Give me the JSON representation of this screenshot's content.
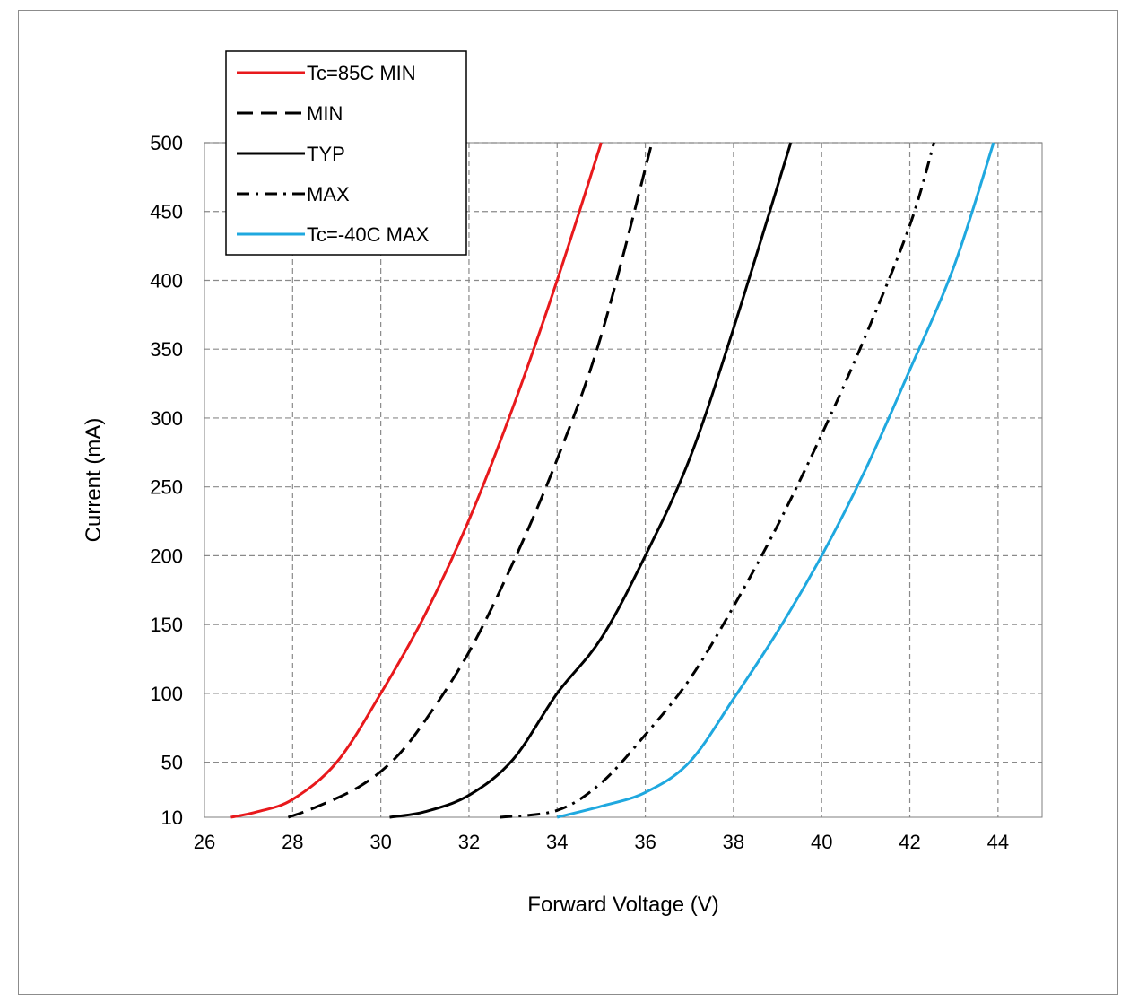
{
  "chart_data": {
    "type": "line",
    "title": "",
    "xlabel": "Forward Voltage (V)",
    "ylabel": "Current (mA)",
    "xlim": [
      26,
      45
    ],
    "ylim": [
      10,
      500
    ],
    "x_ticks": [
      26,
      28,
      30,
      32,
      34,
      36,
      38,
      40,
      42,
      44
    ],
    "y_ticks": [
      10,
      50,
      100,
      150,
      200,
      250,
      300,
      350,
      400,
      450,
      500
    ],
    "x_tick_labels": [
      "26",
      "28",
      "30",
      "32",
      "34",
      "36",
      "38",
      "40",
      "42",
      "44"
    ],
    "y_tick_labels": [
      "10",
      "50",
      "100",
      "150",
      "200",
      "250",
      "300",
      "350",
      "400",
      "450",
      "500"
    ],
    "grid": true,
    "grid_style": "dashed",
    "legend_position": "top-left",
    "series": [
      {
        "name": "Tc=85C MIN",
        "color": "#e8191c",
        "dash": "solid",
        "points": [
          [
            26.6,
            10
          ],
          [
            27.2,
            14
          ],
          [
            28.0,
            23
          ],
          [
            29.0,
            50
          ],
          [
            30.0,
            100
          ],
          [
            31.0,
            157
          ],
          [
            32.0,
            226
          ],
          [
            33.0,
            308
          ],
          [
            34.0,
            400
          ],
          [
            35.0,
            500
          ]
        ]
      },
      {
        "name": "MIN",
        "color": "#000000",
        "dash": "dash",
        "points": [
          [
            27.9,
            10
          ],
          [
            28.5,
            17
          ],
          [
            29.5,
            32
          ],
          [
            30.3,
            52
          ],
          [
            31.0,
            80
          ],
          [
            32.0,
            130
          ],
          [
            33.0,
            195
          ],
          [
            34.0,
            270
          ],
          [
            35.0,
            360
          ],
          [
            36.15,
            500
          ]
        ]
      },
      {
        "name": "TYP",
        "color": "#000000",
        "dash": "solid",
        "points": [
          [
            30.2,
            10
          ],
          [
            31.0,
            14
          ],
          [
            32.0,
            26
          ],
          [
            33.0,
            52
          ],
          [
            34.0,
            100
          ],
          [
            35.0,
            140
          ],
          [
            36.0,
            200
          ],
          [
            37.0,
            270
          ],
          [
            38.0,
            365
          ],
          [
            39.3,
            500
          ]
        ]
      },
      {
        "name": "MAX",
        "color": "#000000",
        "dash": "dashdot",
        "points": [
          [
            32.7,
            10
          ],
          [
            34.0,
            15
          ],
          [
            35.0,
            35
          ],
          [
            36.0,
            70
          ],
          [
            37.0,
            110
          ],
          [
            38.0,
            163
          ],
          [
            39.0,
            222
          ],
          [
            40.0,
            288
          ],
          [
            41.0,
            360
          ],
          [
            42.0,
            440
          ],
          [
            42.55,
            500
          ]
        ]
      },
      {
        "name": "Tc=-40C MAX",
        "color": "#1fa8df",
        "dash": "solid",
        "points": [
          [
            34.0,
            10
          ],
          [
            35.0,
            18
          ],
          [
            36.0,
            28
          ],
          [
            37.0,
            50
          ],
          [
            38.0,
            96
          ],
          [
            39.0,
            145
          ],
          [
            40.0,
            200
          ],
          [
            41.0,
            263
          ],
          [
            42.0,
            335
          ],
          [
            43.0,
            410
          ],
          [
            43.9,
            500
          ]
        ]
      }
    ]
  }
}
